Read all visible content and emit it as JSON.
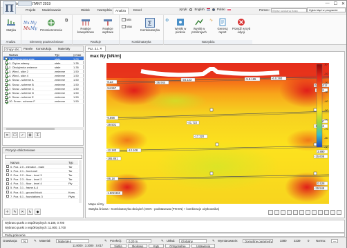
{
  "window": {
    "title": "Soldis PROJEKTANT 2019",
    "controls": [
      "—",
      "☐",
      "✕"
    ]
  },
  "ribbon_tabs": [
    "Projekt",
    "Modelowanie",
    "Widok",
    "Narzędzia",
    "Analiza",
    "Devel"
  ],
  "active_tab": "Analiza",
  "language": {
    "label": "Język:",
    "options": [
      "English",
      "Polski"
    ],
    "selected": "Polski"
  },
  "help": {
    "label": "Pomoc:",
    "placeholder": "Wpisz szukaną frazę"
  },
  "report_button": "Zgłoś błąd w programie",
  "ribbon": {
    "groups": [
      {
        "label": "Analiza",
        "buttons": [
          "Statyka"
        ]
      },
      {
        "label": "Elementy powierzchniowe",
        "buttons": [
          "Przemieszczenia"
        ]
      },
      {
        "label": "Reakcje",
        "buttons": [
          "Reakcje krawędziowe",
          "Reakcje węzłowe"
        ]
      },
      {
        "label": "Kombinatoryka",
        "buttons": [
          "Min",
          "Max",
          "Kombinatoryka"
        ]
      },
      {
        "label": "Narzędzia",
        "buttons": [
          "Wyniki w punkcie",
          "Wyniki w przekrojach",
          "Generuj raport",
          "Przejdź w tryb edycji"
        ]
      }
    ]
  },
  "load_groups_panel": {
    "tabs": [
      "Grupy obc.",
      "Panele",
      "Konstrukcja",
      "Materiały"
    ],
    "columns": [
      "Nazwa",
      "Typ",
      "γ max"
    ],
    "rows": [
      {
        "checked": true,
        "name": "0. Wymuszenia stałe",
        "type": "stałe",
        "gamma": "1.00",
        "selected": true
      },
      {
        "checked": true,
        "name": "1. Ciężar własny",
        "type": "stałe",
        "gamma": "1.35",
        "selected": false
      },
      {
        "checked": true,
        "name": "2. Obciążenia zmienne",
        "type": "stałe",
        "gamma": "1.35",
        "selected": false
      },
      {
        "checked": true,
        "name": "3. Wind - side 2",
        "type": "zmienne",
        "gamma": "1.50",
        "selected": false
      },
      {
        "checked": true,
        "name": "4. Wind - side 4",
        "type": "zmienne",
        "gamma": "1.50",
        "selected": false
      },
      {
        "checked": true,
        "name": "5. Snow - scheme A",
        "type": "zmienne",
        "gamma": "1.50",
        "selected": false
      },
      {
        "checked": true,
        "name": "6. Snow - scheme B",
        "type": "zmienne",
        "gamma": "1.50",
        "selected": false
      },
      {
        "checked": true,
        "name": "7. Snow - scheme C",
        "type": "zmienne",
        "gamma": "1.50",
        "selected": false
      },
      {
        "checked": true,
        "name": "8. Snow - scheme D",
        "type": "zmienne",
        "gamma": "1.50",
        "selected": false
      },
      {
        "checked": true,
        "name": "9. Snow - scheme E",
        "type": "zmienne",
        "gamma": "1.50",
        "selected": false
      },
      {
        "checked": true,
        "name": "10. Snow - scheme F",
        "type": "zmienne",
        "gamma": "1.50",
        "selected": false
      }
    ],
    "toolbar": [
      "✕",
      "☐",
      "✓",
      "⊠",
      "Σ"
    ]
  },
  "calc_positions_panel": {
    "title": "Pozycje obliczeniowe",
    "columns": [
      "Nazwa",
      "Typ"
    ],
    "rows": [
      {
        "name": "0. Poz. 2.0 - elevator - main",
        "type": "Tar"
      },
      {
        "name": "1. Poz. 2.1 - front wall",
        "type": "Tar"
      },
      {
        "name": "2. Poz. 2.2 - floor - level 3",
        "type": "Tar"
      },
      {
        "name": "3. Poz. 2.3 - floor - level 2",
        "type": "Tar"
      },
      {
        "name": "4. Poz. 3.1 - floor - level 4",
        "type": "Pły"
      },
      {
        "name": "5. Poz. 3.1 - frame A-4",
        "type": ""
      },
      {
        "name": "6. Poz. 6.1 - ground block",
        "type": "Kons"
      },
      {
        "name": "7. Poz. 6.1 - foundations 3",
        "type": "Płyta"
      }
    ],
    "toolbar": [
      "＋",
      "✎",
      "✕",
      "↳",
      "◆"
    ]
  },
  "viewport": {
    "tab_label": "Poz. 3.1 ✕",
    "title": "max Ny [kN/m]",
    "caption_line1": "Mapa sił Ny",
    "caption_line2": "Statyka liniowa - Kombinatoryka obciążeń (SGN - podstawowa (PN-EN) + kombinacje użytkownika)",
    "left_labels": [
      "-8.22",
      "-54.557",
      "-9.698",
      "-29.501",
      "-12.183",
      "-165.861",
      "-86.18",
      "-1.502.863"
    ],
    "inner_labels": [
      "-36.944",
      "-34.133",
      "-41.722",
      "-5.8.165",
      "-6.0.393",
      "-17.320",
      "-12.108"
    ],
    "right_labels": [
      "0.038.012",
      "-0.101",
      "0.457",
      "-14.116",
      "3.890",
      "-15.608",
      "0.528",
      "-29.549"
    ],
    "legend_values": [
      "10",
      "-10",
      "-20",
      "-30",
      "-40",
      "-50",
      "-60",
      "-70",
      "-80",
      "-90"
    ]
  },
  "output": {
    "lines": [
      "Wybrano punkt o współrzędnych: 6.186, 0.700",
      "Wybrano punkt o współrzędnych: 11.800, 3.700"
    ],
    "command": "Podaj polecenie"
  },
  "statusbar": {
    "grawitacja_label": "Grawitacja:",
    "grawitacja_value": "N",
    "material_label": "Materiał:",
    "material_value": "Materiał-4",
    "przekroj_label": "Przekrój:",
    "przekroj_value": "0,20 m",
    "uklad_label": "Układ:",
    "uklad_value": "Globalny",
    "wymiarowanie_label": "Wymiarowanie:",
    "wymiarowanie_value": "Domyślne parametry",
    "extra1": "3380",
    "extra2": "3239",
    "extra3": "0",
    "norma_label": "Norma:",
    "norma_value": "—"
  },
  "coordbar": {
    "coords": "11.8000 ; 3.2000 ; 0.017",
    "buttons": [
      "Siatka",
      "Skokowo",
      "Kąty",
      "Ortogonalnie",
      "Ustawienia"
    ]
  },
  "colors": {
    "selection": "#3875d7",
    "ribbon_bg": "#fafafa",
    "map_hot": "#e8241c",
    "map_cool": "#ffe600"
  }
}
